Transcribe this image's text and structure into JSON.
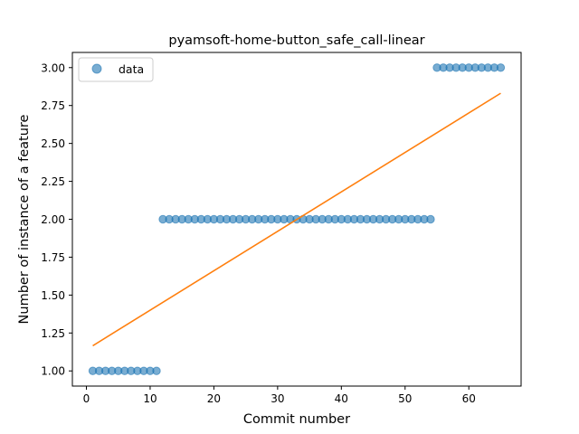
{
  "chart_data": {
    "type": "scatter",
    "title": "pyamsoft-home-button_safe_call-linear",
    "xlabel": "Commit number",
    "ylabel": "Number of instance of a feature",
    "xlim": [
      -2.2,
      68.2
    ],
    "ylim": [
      0.9,
      3.1
    ],
    "xticks": [
      0,
      10,
      20,
      30,
      40,
      50,
      60
    ],
    "yticks": [
      1.0,
      1.25,
      1.5,
      1.75,
      2.0,
      2.25,
      2.5,
      2.75,
      3.0
    ],
    "xtick_labels": [
      "0",
      "10",
      "20",
      "30",
      "40",
      "50",
      "60"
    ],
    "ytick_labels": [
      "1.00",
      "1.25",
      "1.50",
      "1.75",
      "2.00",
      "2.25",
      "2.50",
      "2.75",
      "3.00"
    ],
    "legend": {
      "position": "upper-left",
      "entries": [
        "data"
      ]
    },
    "series": [
      {
        "name": "data",
        "kind": "scatter",
        "color": "#1f77b4",
        "x": [
          1,
          2,
          3,
          4,
          5,
          6,
          7,
          8,
          9,
          10,
          11,
          12,
          13,
          14,
          15,
          16,
          17,
          18,
          19,
          20,
          21,
          22,
          23,
          24,
          25,
          26,
          27,
          28,
          29,
          30,
          31,
          32,
          33,
          34,
          35,
          36,
          37,
          38,
          39,
          40,
          41,
          42,
          43,
          44,
          45,
          46,
          47,
          48,
          49,
          50,
          51,
          52,
          53,
          54,
          55,
          56,
          57,
          58,
          59,
          60,
          61,
          62,
          63,
          64,
          65
        ],
        "y": [
          1,
          1,
          1,
          1,
          1,
          1,
          1,
          1,
          1,
          1,
          1,
          2,
          2,
          2,
          2,
          2,
          2,
          2,
          2,
          2,
          2,
          2,
          2,
          2,
          2,
          2,
          2,
          2,
          2,
          2,
          2,
          2,
          2,
          2,
          2,
          2,
          2,
          2,
          2,
          2,
          2,
          2,
          2,
          2,
          2,
          2,
          2,
          2,
          2,
          2,
          2,
          2,
          2,
          2,
          3,
          3,
          3,
          3,
          3,
          3,
          3,
          3,
          3,
          3,
          3
        ]
      },
      {
        "kind": "line",
        "color": "#ff7f0e",
        "x": [
          1,
          65
        ],
        "y": [
          1.166,
          2.831
        ]
      }
    ]
  }
}
